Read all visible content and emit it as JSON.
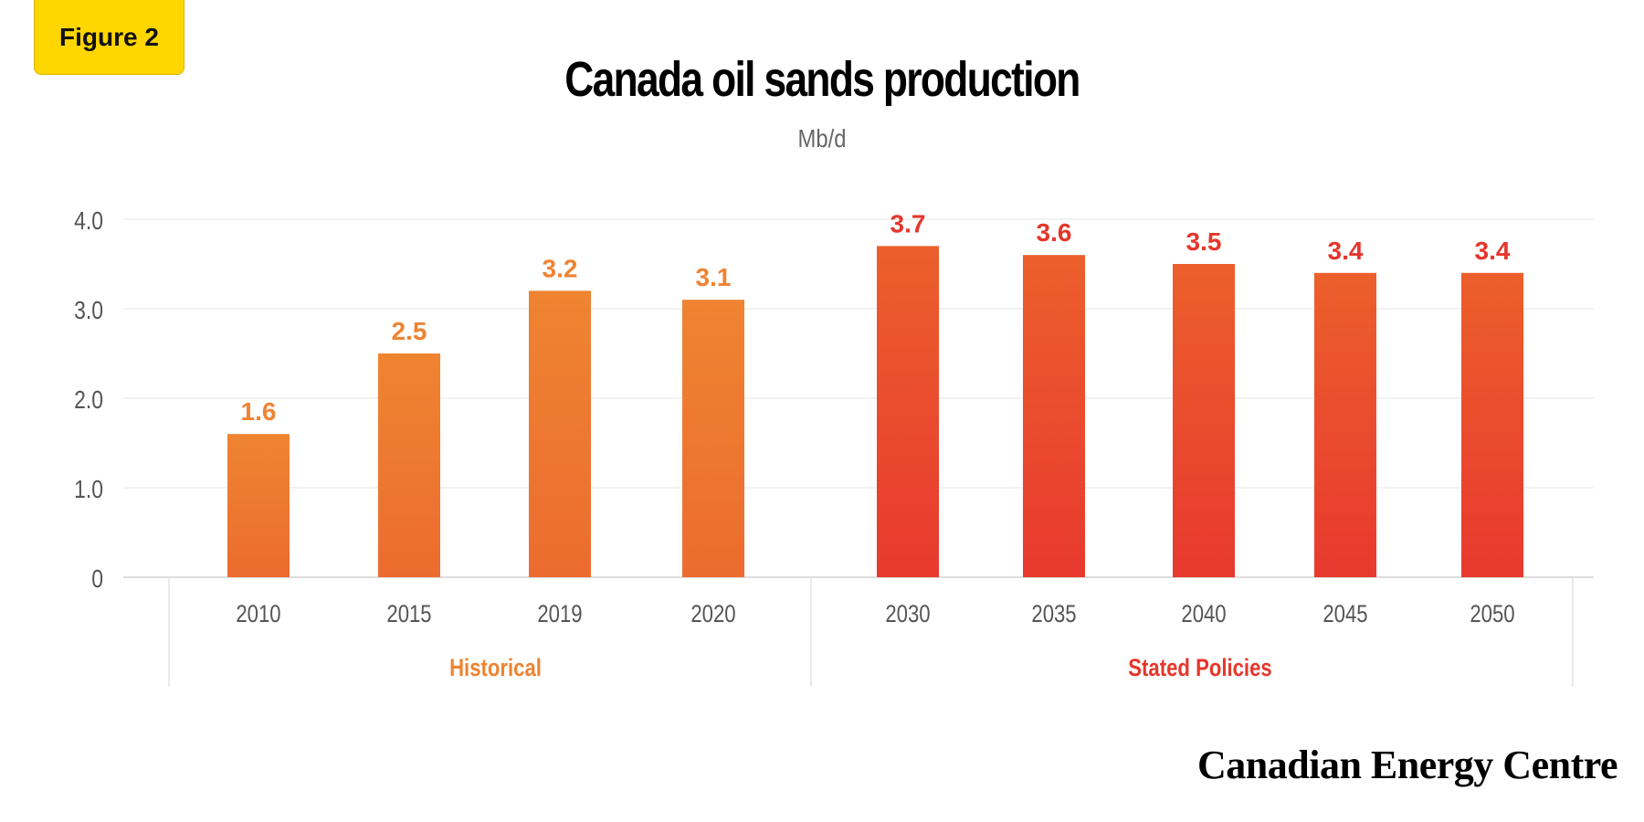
{
  "badge": {
    "label": "Figure 2"
  },
  "footer": {
    "brand": "Canadian Energy Centre"
  },
  "colors": {
    "historical_top": "#ef8431",
    "historical_bottom": "#ec6c2f",
    "policies_top": "#ec5f2c",
    "policies_bottom": "#e8392f",
    "historical_label": "#ee8332",
    "policies_label": "#e5362b",
    "axis_text": "#555555",
    "grid": "#eeeeee"
  },
  "chart_data": {
    "type": "bar",
    "title": "Canada oil sands production",
    "subtitle": "Mb/d",
    "xlabel": "",
    "ylabel": "",
    "ylim": [
      0,
      4.0
    ],
    "yticks": [
      0,
      1.0,
      2.0,
      3.0,
      4.0
    ],
    "ytick_labels": [
      "0",
      "1.0",
      "2.0",
      "3.0",
      "4.0"
    ],
    "grid": true,
    "categories": [
      "2010",
      "2015",
      "2019",
      "2020",
      "2030",
      "2035",
      "2040",
      "2045",
      "2050"
    ],
    "values": [
      1.6,
      2.5,
      3.2,
      3.1,
      3.7,
      3.6,
      3.5,
      3.4,
      3.4
    ],
    "value_labels": [
      "1.6",
      "2.5",
      "3.2",
      "3.1",
      "3.7",
      "3.6",
      "3.5",
      "3.4",
      "3.4"
    ],
    "groups": [
      {
        "label": "Historical",
        "categories": [
          "2010",
          "2015",
          "2019",
          "2020"
        ]
      },
      {
        "label": "Stated Policies",
        "categories": [
          "2030",
          "2035",
          "2040",
          "2045",
          "2050"
        ]
      }
    ]
  }
}
